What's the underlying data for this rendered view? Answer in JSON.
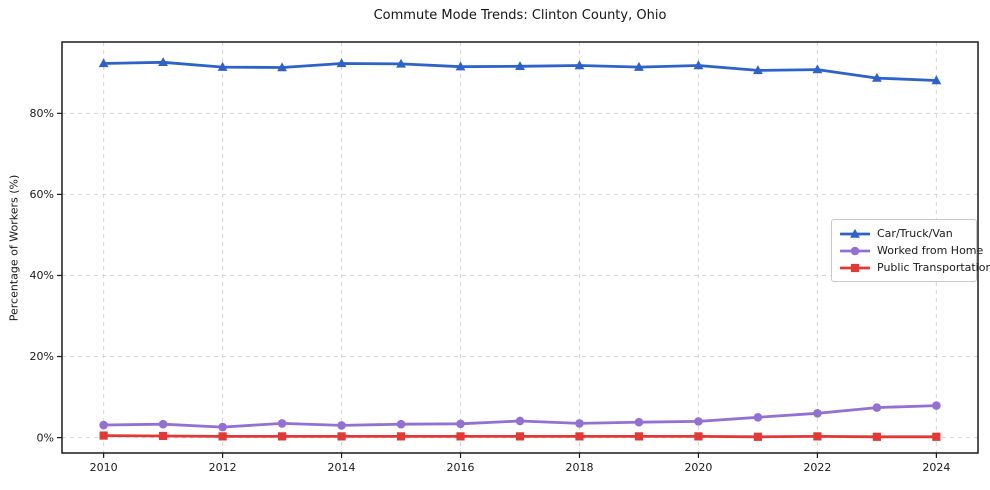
{
  "chart_data": {
    "type": "line",
    "title": "Commute Mode Trends: Clinton County, Ohio",
    "xlabel": "",
    "ylabel": "Percentage of Workers (%)",
    "x": [
      2010,
      2011,
      2012,
      2013,
      2014,
      2015,
      2016,
      2017,
      2018,
      2019,
      2020,
      2021,
      2022,
      2023,
      2024
    ],
    "series": [
      {
        "name": "Car/Truck/Van",
        "color": "#2d63c8",
        "marker": "triangle",
        "values": [
          92.3,
          92.6,
          91.4,
          91.3,
          92.3,
          92.2,
          91.5,
          91.6,
          91.8,
          91.4,
          91.8,
          90.6,
          90.8,
          88.7,
          88.1
        ]
      },
      {
        "name": "Worked from Home",
        "color": "#9371d3",
        "marker": "circle",
        "values": [
          3.1,
          3.3,
          2.6,
          3.5,
          3.0,
          3.3,
          3.4,
          4.1,
          3.5,
          3.8,
          4.0,
          5.0,
          6.0,
          7.4,
          7.9
        ]
      },
      {
        "name": "Public Transportation",
        "color": "#e23934",
        "marker": "square",
        "values": [
          0.5,
          0.4,
          0.3,
          0.3,
          0.3,
          0.3,
          0.3,
          0.3,
          0.3,
          0.3,
          0.3,
          0.2,
          0.3,
          0.2,
          0.2
        ]
      }
    ],
    "xlim": [
      2009.3,
      2024.7
    ],
    "ylim": [
      -3.8,
      97.6
    ],
    "xticks": [
      2010,
      2012,
      2014,
      2016,
      2018,
      2020,
      2022,
      2024
    ],
    "xtick_labels": [
      "2010",
      "2012",
      "2014",
      "2016",
      "2018",
      "2020",
      "2022",
      "2024"
    ],
    "yticks": [
      0,
      20,
      40,
      60,
      80
    ],
    "ytick_labels": [
      "0%",
      "20%",
      "40%",
      "60%",
      "80%"
    ],
    "grid": true,
    "grid_style": "dashed",
    "grid_color": "#d6d6d6",
    "text_color": "#1a1a1a",
    "legend_position": "center-right"
  }
}
